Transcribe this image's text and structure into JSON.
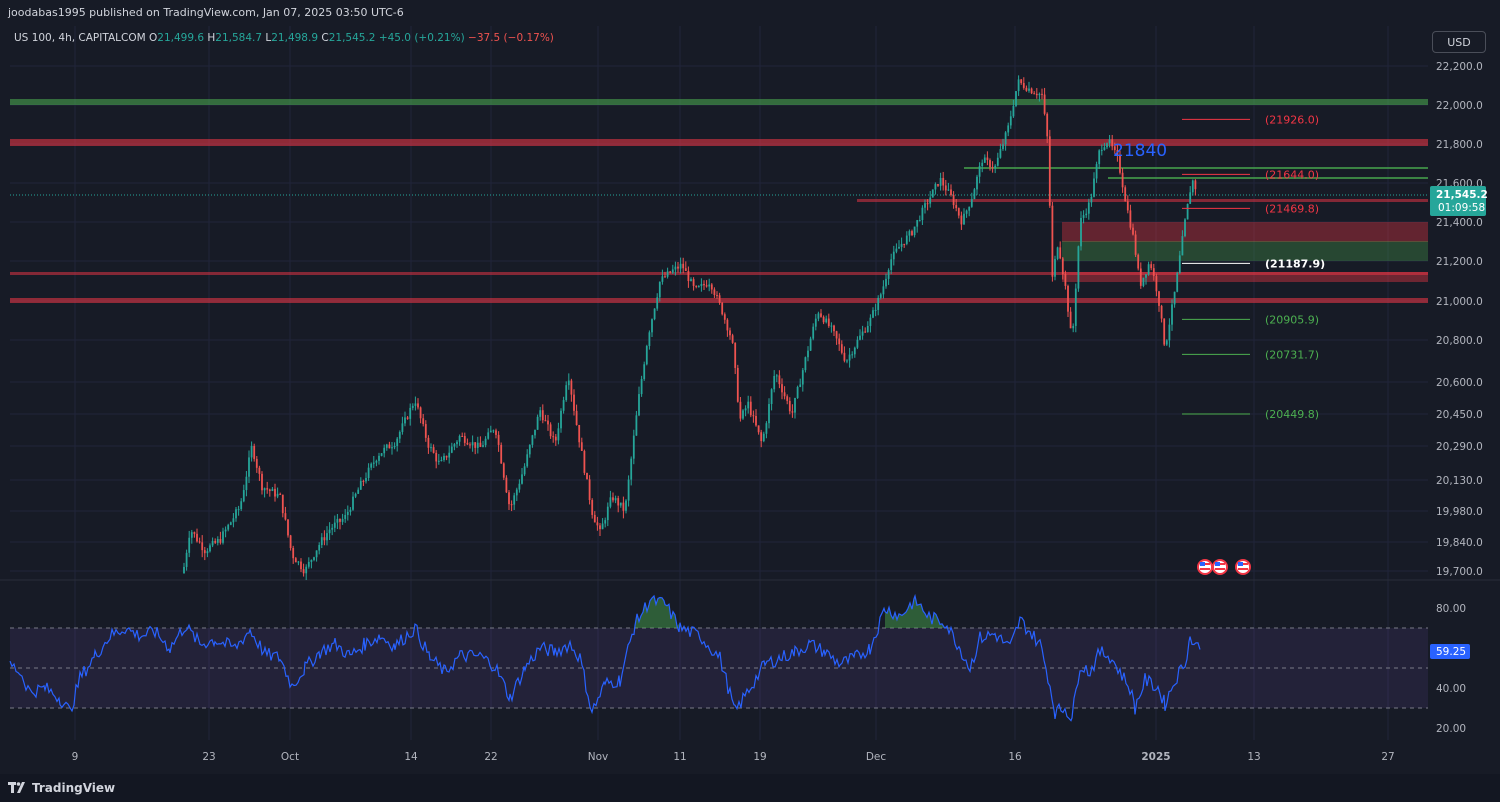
{
  "header": {
    "published_text": "joodabas1995 published on TradingView.com, Jan 07, 2025 03:50 UTC-6"
  },
  "symbol": {
    "name": "US 100, 4h, CAPITALCOM",
    "o_label": "O",
    "o_value": "21,499.6",
    "h_label": "H",
    "h_value": "21,584.7",
    "l_label": "L",
    "l_value": "21,498.9",
    "c_label": "C",
    "c_value": "21,545.2",
    "change": "+45.0 (+0.21%)",
    "change2": "−37.5 (−0.17%)"
  },
  "currency_button": "USD",
  "price_axis": {
    "ticks": [
      {
        "label": "22,200.0",
        "v": 22200
      },
      {
        "label": "22,000.0",
        "v": 22000
      },
      {
        "label": "21,800.0",
        "v": 21800
      },
      {
        "label": "21,600.0",
        "v": 21600
      },
      {
        "label": "21,400.0",
        "v": 21400
      },
      {
        "label": "21,200.0",
        "v": 21200
      },
      {
        "label": "21,000.0",
        "v": 21000
      },
      {
        "label": "20,800.0",
        "v": 20800
      },
      {
        "label": "20,600.0",
        "v": 20600
      },
      {
        "label": "20,450.0",
        "v": 20450
      },
      {
        "label": "20,290.0",
        "v": 20290
      },
      {
        "label": "20,130.0",
        "v": 20130
      },
      {
        "label": "19,980.0",
        "v": 19980
      },
      {
        "label": "19,840.0",
        "v": 19840
      },
      {
        "label": "19,700.0",
        "v": 19700
      }
    ],
    "current_price": "21,545.2",
    "countdown": "01:09:58",
    "current_color": "#26a69a"
  },
  "levels": [
    {
      "label": "(21926.0)",
      "v": 21926,
      "color": "#f23645"
    },
    {
      "label": "(21644.0)",
      "v": 21644,
      "color": "#f23645"
    },
    {
      "label": "(21469.8)",
      "v": 21469.8,
      "color": "#f23645"
    },
    {
      "label": "(21187.9)",
      "v": 21187.9,
      "color": "#ffffff"
    },
    {
      "label": "(20905.9)",
      "v": 20905.9,
      "color": "#4caf50"
    },
    {
      "label": "(20731.7)",
      "v": 20731.7,
      "color": "#4caf50"
    },
    {
      "label": "(20449.8)",
      "v": 20449.8,
      "color": "#4caf50"
    }
  ],
  "annotation_text": "21840",
  "rsi": {
    "axis": [
      {
        "label": "80.00",
        "v": 80
      },
      {
        "label": "40.00",
        "v": 40
      },
      {
        "label": "20.00",
        "v": 20
      }
    ],
    "current_value": "59.25",
    "upper": 70,
    "lower": 30,
    "mid": 50
  },
  "time_axis": [
    {
      "label": "9",
      "x": 75
    },
    {
      "label": "23",
      "x": 209
    },
    {
      "label": "Oct",
      "x": 290
    },
    {
      "label": "14",
      "x": 411
    },
    {
      "label": "22",
      "x": 491
    },
    {
      "label": "Nov",
      "x": 598
    },
    {
      "label": "11",
      "x": 680
    },
    {
      "label": "19",
      "x": 760
    },
    {
      "label": "Dec",
      "x": 876
    },
    {
      "label": "16",
      "x": 1015
    },
    {
      "label": "2025",
      "x": 1156
    },
    {
      "label": "13",
      "x": 1254
    },
    {
      "label": "27",
      "x": 1388
    }
  ],
  "footer": {
    "brand": "TradingView"
  },
  "colors": {
    "bg": "#171b26",
    "up": "#26a69a",
    "down": "#ef5350",
    "rsi": "#2962ff"
  }
}
